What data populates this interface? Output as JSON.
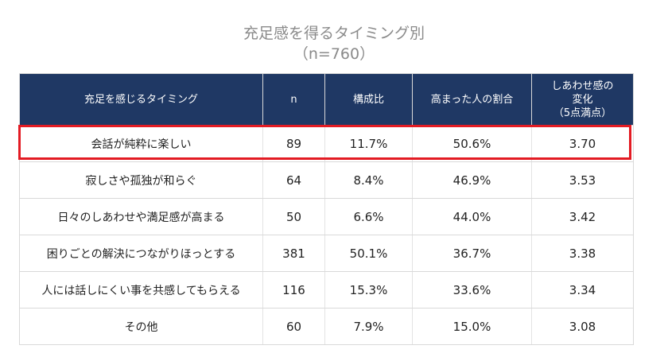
{
  "title_line1": "充足感を得るタイミング別",
  "title_line2": "（n=760）",
  "headers": {
    "timing": "充足を感じるタイミング",
    "n": "n",
    "ratio": "構成比",
    "rise_rate": "高まった人の割合",
    "happy_l1": "しあわせ感の",
    "happy_l2": "変化",
    "happy_l3": "（5点満点）"
  },
  "highlight_color": "#e31b23",
  "header_color": "#1f3864",
  "chart_data": {
    "type": "table",
    "columns": [
      "充足を感じるタイミング",
      "n",
      "構成比",
      "高まった人の割合",
      "しあわせ感の変化（5点満点）"
    ],
    "rows": [
      {
        "timing": "会話が純粋に楽しい",
        "n": "89",
        "ratio": "11.7%",
        "rise_rate": "50.6%",
        "happy": "3.70"
      },
      {
        "timing": "寂しさや孤独が和らぐ",
        "n": "64",
        "ratio": "8.4%",
        "rise_rate": "46.9%",
        "happy": "3.53"
      },
      {
        "timing": "日々のしあわせや満足感が高まる",
        "n": "50",
        "ratio": "6.6%",
        "rise_rate": "44.0%",
        "happy": "3.42"
      },
      {
        "timing": "困りごとの解決につながりほっとする",
        "n": "381",
        "ratio": "50.1%",
        "rise_rate": "36.7%",
        "happy": "3.38"
      },
      {
        "timing": "人には話しにくい事を共感してもらえる",
        "n": "116",
        "ratio": "15.3%",
        "rise_rate": "33.6%",
        "happy": "3.34"
      },
      {
        "timing": "その他",
        "n": "60",
        "ratio": "7.9%",
        "rise_rate": "15.0%",
        "happy": "3.08"
      }
    ],
    "highlighted_row": 0
  }
}
